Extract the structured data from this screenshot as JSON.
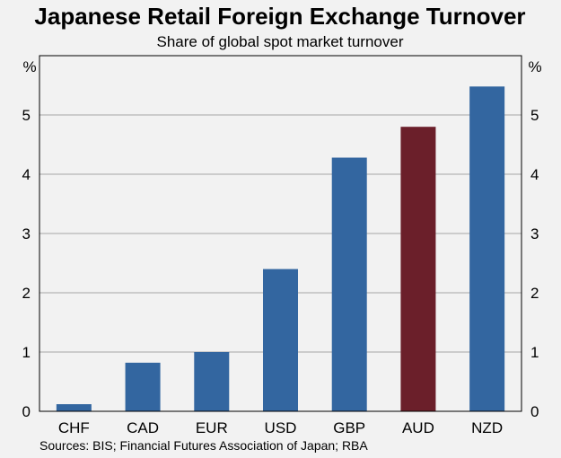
{
  "chart_data": {
    "type": "bar",
    "title": "Japanese Retail Foreign Exchange Turnover",
    "subtitle": "Share of global spot market turnover",
    "ylabel_left": "%",
    "ylabel_right": "%",
    "ylim": [
      0,
      6
    ],
    "yticks": [
      0,
      1,
      2,
      3,
      4,
      5
    ],
    "categories": [
      "CHF",
      "CAD",
      "EUR",
      "USD",
      "GBP",
      "AUD",
      "NZD"
    ],
    "values": [
      0.12,
      0.82,
      1.0,
      2.4,
      4.28,
      4.8,
      5.48
    ],
    "highlight": "AUD",
    "colors": {
      "default": "#3366a0",
      "highlight": "#6b1f2a",
      "grid": "#a6a6a6",
      "frame": "#000000",
      "background": "#f2f2f2"
    },
    "grid": true,
    "source": "Sources: BIS; Financial Futures Association of Japan; RBA"
  }
}
